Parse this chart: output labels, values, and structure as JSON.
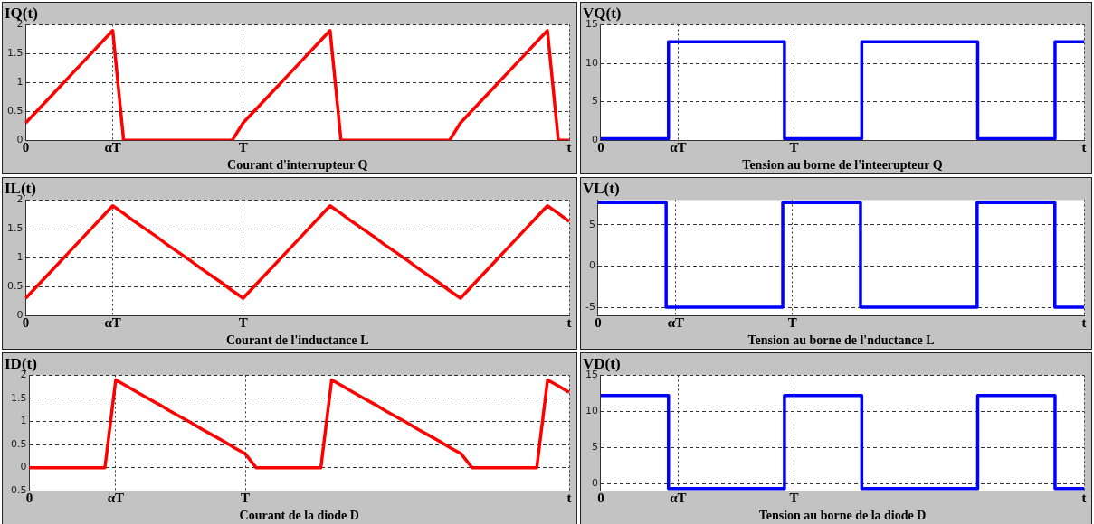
{
  "chart_data": [
    {
      "type": "line",
      "title": "IQ(t)",
      "xlabel": "Courant d'interrupteur Q",
      "color": "#ff0000",
      "marker": "none",
      "line_style": "solid",
      "grid": true,
      "ylim": [
        0,
        2
      ],
      "yticks": [
        0,
        0.5,
        1,
        1.5,
        2
      ],
      "categories": [
        "0",
        null,
        null,
        null,
        null,
        null,
        null,
        null,
        "αT",
        null,
        null,
        null,
        null,
        null,
        null,
        null,
        null,
        null,
        null,
        null,
        "T",
        null,
        null,
        null,
        null,
        null,
        null,
        null,
        null,
        null,
        null,
        null,
        null,
        null,
        null,
        null,
        null,
        null,
        null,
        null,
        null,
        null,
        null,
        null,
        null,
        null,
        null,
        null,
        null,
        null,
        "t"
      ],
      "values": [
        0.3,
        0.5,
        0.7,
        0.9,
        1.1,
        1.3,
        1.5,
        1.7,
        1.9,
        0,
        0,
        0,
        0,
        0,
        0,
        0,
        0,
        0,
        0,
        0,
        0.3,
        0.5,
        0.7,
        0.9,
        1.1,
        1.3,
        1.5,
        1.7,
        1.9,
        0,
        0,
        0,
        0,
        0,
        0,
        0,
        0,
        0,
        0,
        0,
        0.3,
        0.5,
        0.7,
        0.9,
        1.1,
        1.3,
        1.5,
        1.7,
        1.9,
        0,
        0
      ]
    },
    {
      "type": "step",
      "title": "VQ(t)",
      "xlabel": "Tension au borne de l'inteerupteur Q",
      "color": "#0000ff",
      "marker": "none",
      "line_style": "solid",
      "grid": true,
      "ylim": [
        0,
        15
      ],
      "yticks": [
        0,
        5,
        10,
        15
      ],
      "categories": [
        "0",
        null,
        null,
        null,
        null,
        null,
        null,
        null,
        "αT",
        null,
        null,
        null,
        null,
        null,
        null,
        null,
        null,
        null,
        null,
        null,
        "T",
        null,
        null,
        null,
        null,
        null,
        null,
        null,
        null,
        null,
        null,
        null,
        null,
        null,
        null,
        null,
        null,
        null,
        null,
        null,
        null,
        null,
        null,
        null,
        null,
        null,
        null,
        null,
        null,
        null,
        "t"
      ],
      "values": [
        0.2,
        0.2,
        0.2,
        0.2,
        0.2,
        0.2,
        0.2,
        0.2,
        12.8,
        12.8,
        12.8,
        12.8,
        12.8,
        12.8,
        12.8,
        12.8,
        12.8,
        12.8,
        12.8,
        12.8,
        0.2,
        0.2,
        0.2,
        0.2,
        0.2,
        0.2,
        0.2,
        0.2,
        12.8,
        12.8,
        12.8,
        12.8,
        12.8,
        12.8,
        12.8,
        12.8,
        12.8,
        12.8,
        12.8,
        12.8,
        0.2,
        0.2,
        0.2,
        0.2,
        0.2,
        0.2,
        0.2,
        0.2,
        12.8,
        12.8,
        12.8
      ]
    },
    {
      "type": "line",
      "title": "IL(t)",
      "xlabel": "Courant de l'inductance L",
      "color": "#ff0000",
      "marker": "none",
      "line_style": "solid",
      "grid": true,
      "ylim": [
        0,
        2
      ],
      "yticks": [
        0,
        0.5,
        1,
        1.5,
        2
      ],
      "categories": [
        "0",
        null,
        null,
        null,
        null,
        null,
        null,
        null,
        "αT",
        null,
        null,
        null,
        null,
        null,
        null,
        null,
        null,
        null,
        null,
        null,
        "T",
        null,
        null,
        null,
        null,
        null,
        null,
        null,
        null,
        null,
        null,
        null,
        null,
        null,
        null,
        null,
        null,
        null,
        null,
        null,
        null,
        null,
        null,
        null,
        null,
        null,
        null,
        null,
        null,
        null,
        "t"
      ],
      "values": [
        0.3,
        0.5,
        0.7,
        0.9,
        1.1,
        1.3,
        1.5,
        1.7,
        1.9,
        1.77,
        1.63,
        1.5,
        1.37,
        1.23,
        1.1,
        0.97,
        0.83,
        0.7,
        0.57,
        0.43,
        0.3,
        0.5,
        0.7,
        0.9,
        1.1,
        1.3,
        1.5,
        1.7,
        1.9,
        1.77,
        1.63,
        1.5,
        1.37,
        1.23,
        1.1,
        0.97,
        0.83,
        0.7,
        0.57,
        0.43,
        0.3,
        0.5,
        0.7,
        0.9,
        1.1,
        1.3,
        1.5,
        1.7,
        1.9,
        1.77,
        1.63
      ]
    },
    {
      "type": "step",
      "title": "VL(t)",
      "xlabel": "Tension au borne de l'nductance L",
      "color": "#0000ff",
      "marker": "none",
      "line_style": "solid",
      "grid": true,
      "ylim": [
        -6,
        8
      ],
      "yticks": [
        -5,
        0,
        5
      ],
      "categories": [
        "0",
        null,
        null,
        null,
        null,
        null,
        null,
        null,
        "αT",
        null,
        null,
        null,
        null,
        null,
        null,
        null,
        null,
        null,
        null,
        null,
        "T",
        null,
        null,
        null,
        null,
        null,
        null,
        null,
        null,
        null,
        null,
        null,
        null,
        null,
        null,
        null,
        null,
        null,
        null,
        null,
        null,
        null,
        null,
        null,
        null,
        null,
        null,
        null,
        null,
        null,
        "t"
      ],
      "values": [
        7.7,
        7.7,
        7.7,
        7.7,
        7.7,
        7.7,
        7.7,
        7.7,
        -5,
        -5,
        -5,
        -5,
        -5,
        -5,
        -5,
        -5,
        -5,
        -5,
        -5,
        -5,
        7.7,
        7.7,
        7.7,
        7.7,
        7.7,
        7.7,
        7.7,
        7.7,
        -5,
        -5,
        -5,
        -5,
        -5,
        -5,
        -5,
        -5,
        -5,
        -5,
        -5,
        -5,
        7.7,
        7.7,
        7.7,
        7.7,
        7.7,
        7.7,
        7.7,
        7.7,
        -5,
        -5,
        -5
      ]
    },
    {
      "type": "line",
      "title": "ID(t)",
      "xlabel": "Courant de la diode D",
      "color": "#ff0000",
      "marker": "none",
      "line_style": "solid",
      "grid": true,
      "ylim": [
        -0.5,
        2
      ],
      "yticks": [
        -0.5,
        0,
        0.5,
        1,
        1.5,
        2
      ],
      "categories": [
        "0",
        null,
        null,
        null,
        null,
        null,
        null,
        null,
        "αT",
        null,
        null,
        null,
        null,
        null,
        null,
        null,
        null,
        null,
        null,
        null,
        "T",
        null,
        null,
        null,
        null,
        null,
        null,
        null,
        null,
        null,
        null,
        null,
        null,
        null,
        null,
        null,
        null,
        null,
        null,
        null,
        null,
        null,
        null,
        null,
        null,
        null,
        null,
        null,
        null,
        null,
        "t"
      ],
      "values": [
        0,
        0,
        0,
        0,
        0,
        0,
        0,
        0,
        1.9,
        1.77,
        1.63,
        1.5,
        1.37,
        1.23,
        1.1,
        0.97,
        0.83,
        0.7,
        0.57,
        0.43,
        0.3,
        0,
        0,
        0,
        0,
        0,
        0,
        0,
        1.9,
        1.77,
        1.63,
        1.5,
        1.37,
        1.23,
        1.1,
        0.97,
        0.83,
        0.7,
        0.57,
        0.43,
        0.3,
        0,
        0,
        0,
        0,
        0,
        0,
        0,
        1.9,
        1.77,
        1.63
      ]
    },
    {
      "type": "step",
      "title": "VD(t)",
      "xlabel": "Tension au borne de la diode D",
      "color": "#0000ff",
      "marker": "none",
      "line_style": "solid",
      "grid": true,
      "ylim": [
        -1,
        15
      ],
      "yticks": [
        0,
        5,
        10,
        15
      ],
      "categories": [
        "0",
        null,
        null,
        null,
        null,
        null,
        null,
        null,
        "αT",
        null,
        null,
        null,
        null,
        null,
        null,
        null,
        null,
        null,
        null,
        null,
        "T",
        null,
        null,
        null,
        null,
        null,
        null,
        null,
        null,
        null,
        null,
        null,
        null,
        null,
        null,
        null,
        null,
        null,
        null,
        null,
        null,
        null,
        null,
        null,
        null,
        null,
        null,
        null,
        null,
        null,
        "t"
      ],
      "values": [
        12.2,
        12.2,
        12.2,
        12.2,
        12.2,
        12.2,
        12.2,
        12.2,
        -0.7,
        -0.7,
        -0.7,
        -0.7,
        -0.7,
        -0.7,
        -0.7,
        -0.7,
        -0.7,
        -0.7,
        -0.7,
        -0.7,
        12.2,
        12.2,
        12.2,
        12.2,
        12.2,
        12.2,
        12.2,
        12.2,
        -0.7,
        -0.7,
        -0.7,
        -0.7,
        -0.7,
        -0.7,
        -0.7,
        -0.7,
        -0.7,
        -0.7,
        -0.7,
        -0.7,
        12.2,
        12.2,
        12.2,
        12.2,
        12.2,
        12.2,
        12.2,
        12.2,
        -0.7,
        -0.7,
        -0.7
      ]
    }
  ]
}
